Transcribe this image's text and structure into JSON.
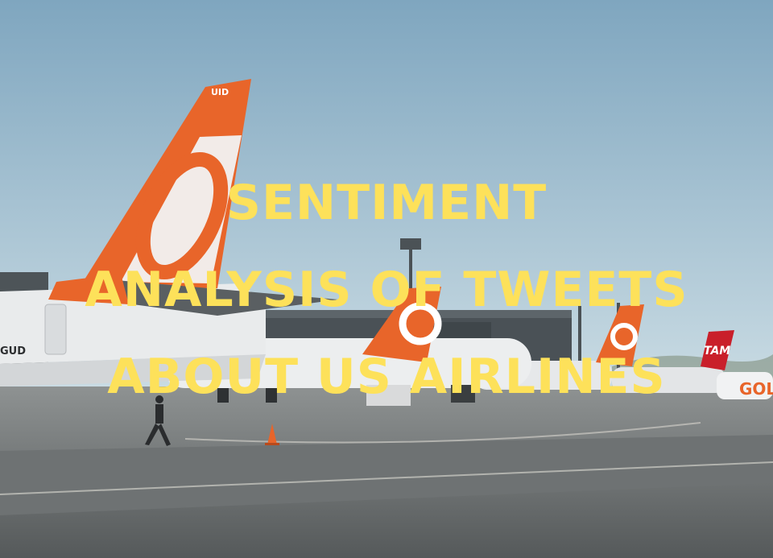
{
  "headline": {
    "line1": "SENTIMENT",
    "line2": "ANALYSIS OF TWEETS",
    "line3": "ABOUT US AIRLINES"
  },
  "tail_livery": {
    "tail1_reg": "UID",
    "fuselage1_reg": "GUD",
    "distant_tail_logo": "TAM",
    "distant_fuselage_text": "GOL"
  },
  "colors": {
    "headline_text": "#fde15a",
    "sky_top": "#7fa6bf",
    "sky_bottom": "#c9dbe3",
    "tail_orange": "#e8652a",
    "tarmac": "#6b6f70"
  }
}
